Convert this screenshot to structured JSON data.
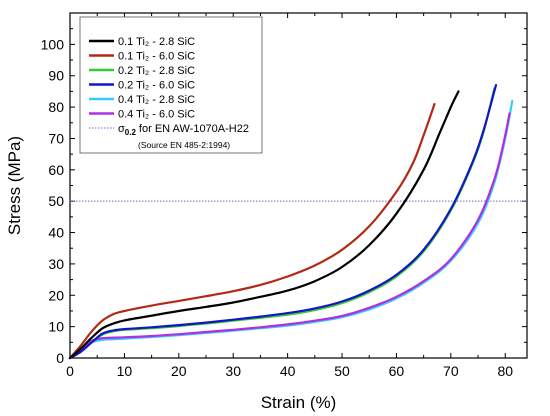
{
  "chart_data": {
    "type": "line",
    "xlabel": "Strain (%)",
    "ylabel": "Stress (MPa)",
    "xlim": [
      0,
      84
    ],
    "ylim": [
      0,
      110
    ],
    "x_ticks": [
      0,
      10,
      20,
      30,
      40,
      50,
      60,
      70,
      80
    ],
    "y_ticks": [
      0,
      10,
      20,
      30,
      40,
      50,
      60,
      70,
      80,
      90,
      100
    ],
    "grid": false,
    "legend_position": "top-left",
    "series": [
      {
        "name": "0.1 Ti₂ - 2.8 SiC",
        "color": "#000000",
        "x": [
          0,
          2,
          4,
          6,
          8,
          10,
          15,
          20,
          25,
          30,
          35,
          40,
          45,
          50,
          55,
          60,
          65,
          68,
          70,
          71.4
        ],
        "y": [
          0,
          3,
          6.5,
          9.5,
          11,
          12,
          13.5,
          15,
          16.3,
          17.7,
          19.5,
          21.5,
          24.5,
          29,
          36,
          46,
          60,
          72,
          80,
          85
        ]
      },
      {
        "name": "0.1 Ti₂ - 6.0 SiC",
        "color": "#b22a14",
        "x": [
          0,
          2,
          4,
          6,
          8,
          10,
          15,
          20,
          25,
          30,
          35,
          40,
          45,
          50,
          55,
          60,
          63,
          65,
          67
        ],
        "y": [
          0,
          4,
          8.5,
          12,
          14,
          15,
          16.7,
          18.2,
          19.7,
          21.3,
          23.3,
          26,
          29.5,
          34.5,
          42,
          53,
          62,
          71,
          81
        ]
      },
      {
        "name": "0.2 Ti₂ - 2.8 SiC",
        "color": "#33cc33",
        "x": [
          0,
          2,
          4,
          6,
          8,
          10,
          15,
          20,
          25,
          30,
          35,
          40,
          45,
          50,
          55,
          60,
          65,
          70,
          74,
          76,
          78
        ],
        "y": [
          0,
          2,
          5,
          7.5,
          8.5,
          9,
          9.5,
          10.2,
          11,
          11.9,
          12.8,
          13.8,
          15.3,
          17.5,
          21,
          26,
          34,
          47,
          62,
          72,
          86
        ]
      },
      {
        "name": "0.2 Ti₂ - 6.0 SiC",
        "color": "#1414c8",
        "x": [
          0,
          2,
          4,
          6,
          8,
          10,
          15,
          20,
          25,
          30,
          35,
          40,
          45,
          50,
          55,
          60,
          65,
          70,
          74,
          76,
          78.3
        ],
        "y": [
          0,
          2,
          5,
          7.8,
          8.8,
          9.2,
          9.8,
          10.5,
          11.3,
          12.2,
          13.2,
          14.3,
          15.8,
          18,
          21.5,
          26.5,
          34.5,
          47.5,
          62.5,
          72.5,
          87
        ]
      },
      {
        "name": "0.4 Ti₂ - 2.8 SiC",
        "color": "#33ccff",
        "x": [
          0,
          2,
          4,
          6,
          8,
          10,
          15,
          20,
          25,
          30,
          35,
          40,
          45,
          50,
          55,
          60,
          65,
          70,
          75,
          78,
          80,
          81.3
        ],
        "y": [
          0,
          2.5,
          5,
          5.8,
          6,
          6.2,
          6.7,
          7.3,
          8,
          8.7,
          9.5,
          10.3,
          11.5,
          13,
          15.5,
          19,
          24,
          31,
          43,
          56,
          70,
          82
        ]
      },
      {
        "name": "0.4 Ti₂ - 6.0 SiC",
        "color": "#b030e0",
        "x": [
          0,
          2,
          4,
          6,
          8,
          10,
          15,
          20,
          25,
          30,
          35,
          40,
          45,
          50,
          55,
          60,
          65,
          70,
          75,
          78,
          79.5,
          80.8
        ],
        "y": [
          0,
          2.8,
          5.5,
          6.3,
          6.5,
          6.6,
          7,
          7.6,
          8.3,
          9,
          9.8,
          10.7,
          11.9,
          13.4,
          16,
          19.5,
          24.5,
          31.5,
          44,
          57,
          67,
          78
        ]
      }
    ],
    "reference_line": {
      "label": "σ",
      "label_subscript": "0.2",
      "label_suffix": "for EN AW-1070A-H22",
      "source_note": "(Source EN 485-2:1994)",
      "y": 50,
      "color": "#6a6ad8"
    }
  }
}
